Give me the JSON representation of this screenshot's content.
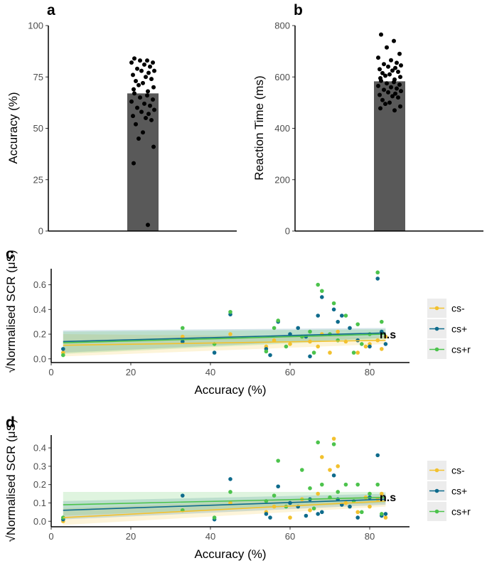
{
  "colors": {
    "bar": "#595959",
    "cs_minus": "#f2c12e",
    "cs_plus": "#0e6b8c",
    "cs_plus_r": "#4cc34c",
    "legend_bg": "#ececec"
  },
  "chart_data": [
    {
      "type": "bar",
      "panel": "a",
      "ylabel": "Accuracy (%)",
      "ylim": [
        0,
        100
      ],
      "yticks": [
        "0",
        "25",
        "50",
        "75",
        "100"
      ],
      "bar_value": 67,
      "points": [
        84,
        83,
        83,
        82,
        82,
        81,
        80,
        79,
        78,
        78,
        77,
        76,
        75,
        74,
        73,
        72,
        71,
        70,
        69,
        68,
        67,
        66,
        65,
        64,
        63,
        62,
        61,
        60,
        59,
        58,
        57,
        56,
        55,
        54,
        52,
        48,
        45,
        41,
        33,
        3
      ]
    },
    {
      "type": "bar",
      "panel": "b",
      "ylabel": "Reaction Time (ms)",
      "ylim": [
        0,
        800
      ],
      "yticks": [
        "0",
        "200",
        "400",
        "600",
        "800"
      ],
      "bar_value": 583,
      "points": [
        765,
        740,
        715,
        690,
        675,
        665,
        655,
        650,
        645,
        640,
        635,
        630,
        625,
        620,
        615,
        610,
        605,
        600,
        595,
        590,
        585,
        580,
        575,
        570,
        565,
        560,
        555,
        550,
        545,
        540,
        535,
        530,
        525,
        520,
        510,
        500,
        495,
        485,
        478,
        470
      ]
    },
    {
      "type": "scatter",
      "panel": "c",
      "xlabel": "Accuracy (%)",
      "ylabel": "√Normalised SCR (μS)",
      "xlim": [
        0,
        90
      ],
      "ylim": [
        -0.03,
        0.73
      ],
      "xticks": [
        "0",
        "20",
        "40",
        "60",
        "80"
      ],
      "yticks": [
        "0.0",
        "0.2",
        "0.4",
        "0.6"
      ],
      "annotation": "n.s",
      "legend": [
        "cs-",
        "cs+",
        "cs+r"
      ],
      "series": [
        {
          "name": "cs-",
          "fit": [
            [
              3,
              0.11
            ],
            [
              84,
              0.15
            ]
          ],
          "band": [
            [
              3,
              0.02,
              0.2
            ],
            [
              84,
              0.12,
              0.18
            ]
          ],
          "x": [
            3,
            33,
            45,
            54,
            56,
            60,
            63,
            65,
            67,
            68,
            70,
            72,
            74,
            77,
            79,
            80,
            82,
            83,
            84
          ],
          "y": [
            0.05,
            0.18,
            0.2,
            0.1,
            0.15,
            0.12,
            0.18,
            0.14,
            0.1,
            0.2,
            0.05,
            0.22,
            0.14,
            0.05,
            0.1,
            0.12,
            0.15,
            0.08,
            0.18
          ]
        },
        {
          "name": "cs+",
          "fit": [
            [
              3,
              0.14
            ],
            [
              84,
              0.21
            ]
          ],
          "band": [
            [
              3,
              0.05,
              0.23
            ],
            [
              84,
              0.17,
              0.25
            ]
          ],
          "x": [
            3,
            33,
            41,
            45,
            54,
            55,
            57,
            60,
            62,
            64,
            65,
            67,
            68,
            71,
            72,
            73,
            75,
            77,
            80,
            82,
            83,
            84
          ],
          "y": [
            0.08,
            0.14,
            0.05,
            0.36,
            0.08,
            0.03,
            0.3,
            0.2,
            0.25,
            0.18,
            0.02,
            0.35,
            0.5,
            0.4,
            0.3,
            0.35,
            0.25,
            0.15,
            0.1,
            0.65,
            0.22,
            0.12
          ]
        },
        {
          "name": "cs+r",
          "fit": [
            [
              3,
              0.13
            ],
            [
              84,
              0.2
            ]
          ],
          "band": [
            [
              3,
              0.04,
              0.22
            ],
            [
              84,
              0.16,
              0.24
            ]
          ],
          "x": [
            3,
            33,
            41,
            45,
            54,
            56,
            57,
            59,
            63,
            65,
            66,
            67,
            68,
            70,
            71,
            72,
            74,
            76,
            77,
            78,
            80,
            82,
            83
          ],
          "y": [
            0.03,
            0.25,
            0.12,
            0.38,
            0.06,
            0.25,
            0.31,
            0.1,
            0.18,
            0.22,
            0.05,
            0.6,
            0.55,
            0.2,
            0.45,
            0.15,
            0.35,
            0.05,
            0.28,
            0.12,
            0.2,
            0.7,
            0.3
          ]
        }
      ]
    },
    {
      "type": "scatter",
      "panel": "d",
      "xlabel": "Accuracy (%)",
      "ylabel": "√Normalised SCR (μS)",
      "xlim": [
        0,
        90
      ],
      "ylim": [
        -0.03,
        0.47
      ],
      "xticks": [
        "0",
        "20",
        "40",
        "60",
        "80"
      ],
      "yticks": [
        "0.0",
        "0.1",
        "0.2",
        "0.3",
        "0.4"
      ],
      "annotation": "n.s",
      "legend": [
        "cs-",
        "cs+",
        "cs+r"
      ],
      "series": [
        {
          "name": "cs-",
          "fit": [
            [
              3,
              0.02
            ],
            [
              84,
              0.11
            ]
          ],
          "band": [
            [
              3,
              -0.02,
              0.07
            ],
            [
              84,
              0.08,
              0.14
            ]
          ],
          "x": [
            3,
            33,
            45,
            54,
            56,
            60,
            63,
            65,
            67,
            68,
            70,
            71,
            72,
            74,
            77,
            79,
            80,
            82,
            83,
            84
          ],
          "y": [
            0.0,
            0.06,
            0.1,
            0.05,
            0.08,
            0.02,
            0.12,
            0.06,
            0.15,
            0.35,
            0.28,
            0.45,
            0.3,
            0.1,
            0.05,
            0.13,
            0.08,
            0.12,
            0.15,
            0.02
          ]
        },
        {
          "name": "cs+",
          "fit": [
            [
              3,
              0.06
            ],
            [
              84,
              0.12
            ]
          ],
          "band": [
            [
              3,
              0.01,
              0.11
            ],
            [
              84,
              0.09,
              0.15
            ]
          ],
          "x": [
            3,
            33,
            41,
            45,
            54,
            55,
            57,
            60,
            62,
            64,
            65,
            67,
            68,
            71,
            72,
            73,
            75,
            77,
            80,
            82,
            83,
            84
          ],
          "y": [
            0.01,
            0.14,
            0.01,
            0.23,
            0.04,
            0.02,
            0.19,
            0.1,
            0.08,
            0.03,
            0.12,
            0.04,
            0.05,
            0.25,
            0.12,
            0.09,
            0.08,
            0.02,
            0.13,
            0.36,
            0.03,
            0.04
          ]
        },
        {
          "name": "cs+r",
          "fit": [
            [
              3,
              0.09
            ],
            [
              84,
              0.13
            ]
          ],
          "band": [
            [
              3,
              0.03,
              0.16
            ],
            [
              84,
              0.1,
              0.16
            ]
          ],
          "x": [
            3,
            33,
            41,
            45,
            54,
            56,
            57,
            59,
            63,
            65,
            66,
            67,
            68,
            70,
            71,
            72,
            74,
            76,
            77,
            78,
            80,
            82,
            83
          ],
          "y": [
            0.02,
            0.06,
            0.02,
            0.16,
            0.11,
            0.14,
            0.33,
            0.08,
            0.28,
            0.18,
            0.07,
            0.43,
            0.2,
            0.13,
            0.42,
            0.16,
            0.2,
            0.11,
            0.2,
            0.05,
            0.15,
            0.2,
            0.04
          ]
        }
      ]
    }
  ]
}
